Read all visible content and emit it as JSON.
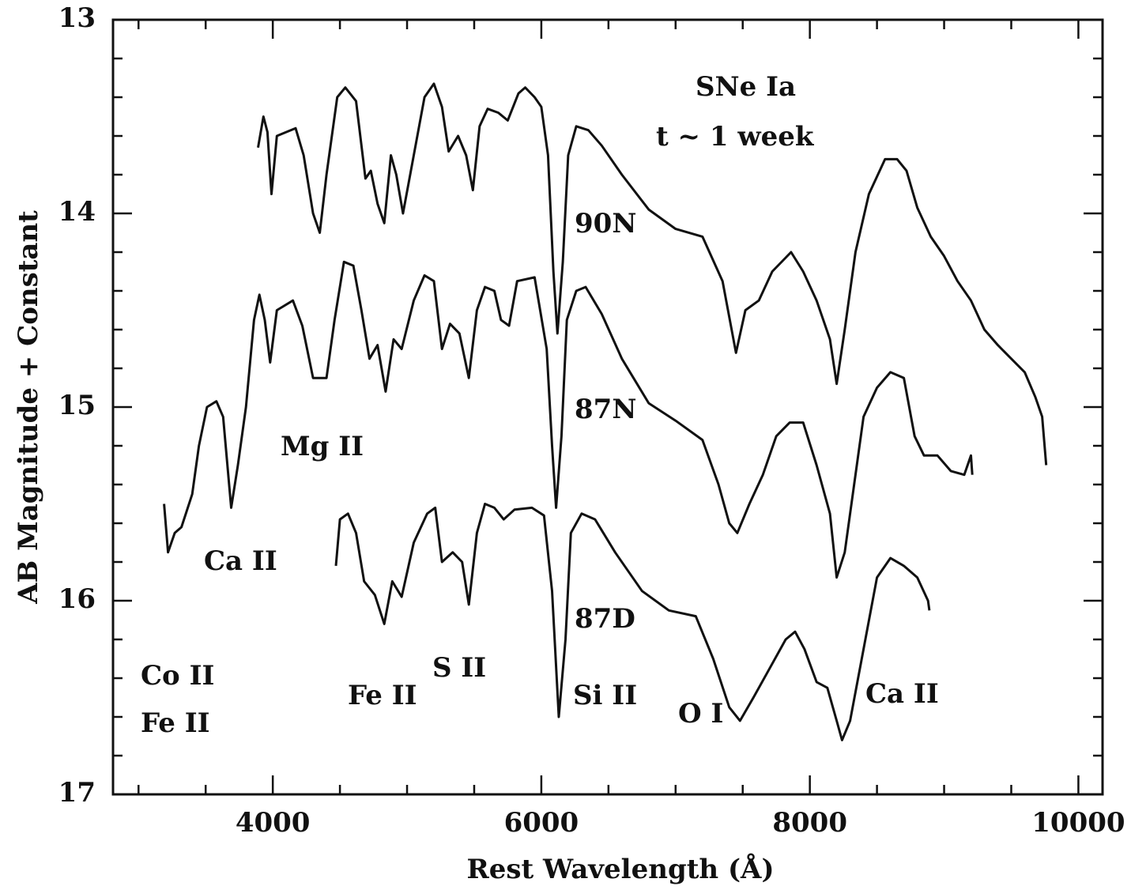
{
  "chart_data": {
    "type": "line",
    "xlabel": "Rest Wavelength (Å)",
    "ylabel": "AB Magnitude + Constant",
    "xlim": [
      2810,
      10180
    ],
    "ylim": [
      17,
      13
    ],
    "xticks": [
      4000,
      6000,
      8000,
      10000
    ],
    "yticks": [
      13,
      14,
      15,
      16,
      17
    ],
    "inverted_y": true,
    "annotations": [
      "SNe Ia",
      "t ~ 1 week",
      "Mg II",
      "Ca II",
      "Co II",
      "Fe II",
      "Fe II",
      "S II",
      "Si II",
      "O I",
      "Ca II"
    ],
    "series": [
      {
        "name": "90N",
        "color": "#111111",
        "x": [
          3890,
          3930,
          3960,
          3990,
          4030,
          4100,
          4170,
          4230,
          4300,
          4350,
          4400,
          4480,
          4540,
          4620,
          4690,
          4730,
          4780,
          4830,
          4880,
          4920,
          4970,
          5050,
          5130,
          5200,
          5260,
          5310,
          5380,
          5440,
          5490,
          5540,
          5600,
          5680,
          5750,
          5830,
          5880,
          5950,
          6000,
          6050,
          6090,
          6120,
          6160,
          6200,
          6260,
          6350,
          6450,
          6600,
          6800,
          7000,
          7200,
          7350,
          7450,
          7520,
          7620,
          7720,
          7860,
          7950,
          8050,
          8150,
          8200,
          8260,
          8340,
          8440,
          8560,
          8650,
          8720,
          8800,
          8900,
          9000,
          9100,
          9200,
          9300,
          9400,
          9500,
          9600,
          9680,
          9730,
          9760
        ],
        "values": [
          13.66,
          13.5,
          13.58,
          13.9,
          13.6,
          13.58,
          13.56,
          13.7,
          14.0,
          14.1,
          13.8,
          13.4,
          13.35,
          13.42,
          13.82,
          13.78,
          13.95,
          14.05,
          13.7,
          13.8,
          14.0,
          13.7,
          13.4,
          13.33,
          13.45,
          13.68,
          13.6,
          13.7,
          13.88,
          13.55,
          13.46,
          13.48,
          13.52,
          13.38,
          13.35,
          13.4,
          13.45,
          13.7,
          14.3,
          14.62,
          14.25,
          13.7,
          13.55,
          13.57,
          13.65,
          13.8,
          13.98,
          14.08,
          14.12,
          14.35,
          14.72,
          14.5,
          14.45,
          14.3,
          14.2,
          14.3,
          14.45,
          14.65,
          14.88,
          14.6,
          14.2,
          13.9,
          13.72,
          13.72,
          13.78,
          13.97,
          14.12,
          14.22,
          14.35,
          14.45,
          14.6,
          14.68,
          14.75,
          14.82,
          14.95,
          15.05,
          15.3
        ]
      },
      {
        "name": "87N",
        "color": "#111111",
        "x": [
          3190,
          3220,
          3270,
          3320,
          3400,
          3450,
          3510,
          3580,
          3630,
          3690,
          3740,
          3800,
          3860,
          3900,
          3940,
          3980,
          4030,
          4150,
          4220,
          4300,
          4400,
          4460,
          4530,
          4600,
          4660,
          4720,
          4780,
          4840,
          4900,
          4960,
          5050,
          5130,
          5200,
          5260,
          5320,
          5390,
          5460,
          5520,
          5580,
          5650,
          5700,
          5760,
          5820,
          5950,
          6040,
          6080,
          6110,
          6150,
          6190,
          6260,
          6330,
          6450,
          6600,
          6800,
          7000,
          7200,
          7320,
          7400,
          7460,
          7550,
          7650,
          7750,
          7850,
          7950,
          8050,
          8150,
          8200,
          8260,
          8330,
          8400,
          8500,
          8600,
          8700,
          8780,
          8850,
          8950,
          9050,
          9150,
          9200,
          9210
        ],
        "values": [
          15.5,
          15.75,
          15.65,
          15.62,
          15.45,
          15.2,
          15.0,
          14.97,
          15.05,
          15.52,
          15.3,
          15.0,
          14.55,
          14.42,
          14.55,
          14.77,
          14.5,
          14.45,
          14.58,
          14.85,
          14.85,
          14.55,
          14.25,
          14.27,
          14.5,
          14.75,
          14.68,
          14.92,
          14.65,
          14.7,
          14.45,
          14.32,
          14.35,
          14.7,
          14.57,
          14.62,
          14.85,
          14.5,
          14.38,
          14.4,
          14.55,
          14.58,
          14.35,
          14.33,
          14.7,
          15.2,
          15.52,
          15.15,
          14.55,
          14.4,
          14.38,
          14.52,
          14.75,
          14.98,
          15.07,
          15.17,
          15.4,
          15.6,
          15.65,
          15.5,
          15.35,
          15.15,
          15.08,
          15.08,
          15.3,
          15.55,
          15.88,
          15.75,
          15.4,
          15.05,
          14.9,
          14.82,
          14.85,
          15.15,
          15.25,
          15.25,
          15.33,
          15.35,
          15.25,
          15.35
        ]
      },
      {
        "name": "87D",
        "color": "#111111",
        "x": [
          4470,
          4500,
          4560,
          4620,
          4680,
          4760,
          4830,
          4890,
          4960,
          5050,
          5150,
          5210,
          5260,
          5340,
          5410,
          5460,
          5520,
          5580,
          5650,
          5720,
          5800,
          5930,
          6020,
          6080,
          6130,
          6180,
          6220,
          6300,
          6400,
          6550,
          6750,
          6950,
          7150,
          7280,
          7400,
          7480,
          7580,
          7700,
          7820,
          7890,
          7960,
          8050,
          8130,
          8200,
          8240,
          8300,
          8400,
          8500,
          8600,
          8700,
          8800,
          8880,
          8890
        ],
        "values": [
          15.82,
          15.58,
          15.55,
          15.65,
          15.9,
          15.97,
          16.12,
          15.9,
          15.98,
          15.7,
          15.55,
          15.52,
          15.8,
          15.75,
          15.8,
          16.02,
          15.65,
          15.5,
          15.52,
          15.58,
          15.53,
          15.52,
          15.56,
          15.95,
          16.6,
          16.2,
          15.65,
          15.55,
          15.58,
          15.75,
          15.95,
          16.05,
          16.08,
          16.3,
          16.55,
          16.62,
          16.5,
          16.35,
          16.2,
          16.16,
          16.25,
          16.42,
          16.45,
          16.62,
          16.72,
          16.62,
          16.25,
          15.88,
          15.78,
          15.82,
          15.88,
          16.0,
          16.05
        ]
      }
    ]
  }
}
